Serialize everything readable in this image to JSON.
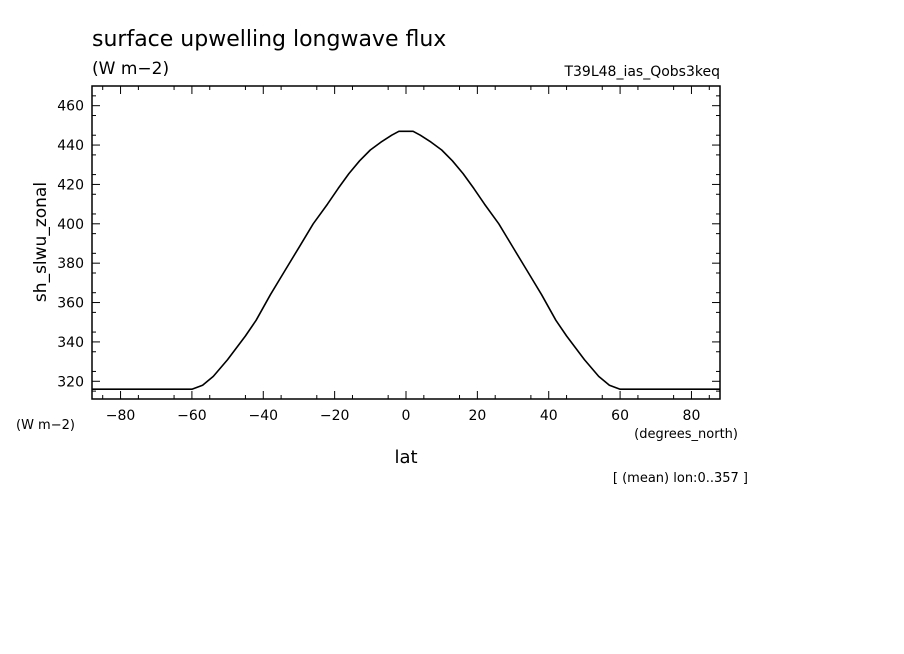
{
  "header": {
    "title": "surface upwelling longwave flux",
    "units": "(W m−2)",
    "run_id": "T39L48_ias_Qobs3keq"
  },
  "footer": {
    "y_units": "(W m−2)",
    "x_units": "(degrees_north)",
    "note": "[ (mean) lon:0..357 ]"
  },
  "chart_data": {
    "type": "line",
    "xlabel": "lat",
    "ylabel": "sh_slwu_zonal",
    "xlim": [
      -88,
      88
    ],
    "ylim": [
      311,
      470
    ],
    "xticks": [
      -80,
      -60,
      -40,
      -20,
      0,
      20,
      40,
      60,
      80
    ],
    "xtick_labels": [
      "−80",
      "−60",
      "−40",
      "−20",
      "0",
      "20",
      "40",
      "60",
      "80"
    ],
    "yticks": [
      320,
      340,
      360,
      380,
      400,
      420,
      440,
      460
    ],
    "ytick_labels": [
      "320",
      "340",
      "360",
      "380",
      "400",
      "420",
      "440",
      "460"
    ],
    "series": [
      {
        "color": "#000000",
        "x": [
          -88,
          -80,
          -70,
          -60,
          -57,
          -54,
          -50,
          -45,
          -42,
          -38,
          -34,
          -30,
          -26,
          -22,
          -19,
          -16,
          -13,
          -10,
          -7,
          -4,
          -2,
          0,
          2,
          4,
          7,
          10,
          13,
          16,
          19,
          22,
          26,
          30,
          34,
          38,
          42,
          45,
          50,
          54,
          57,
          60,
          70,
          80,
          88
        ],
        "y": [
          316,
          316,
          316,
          316,
          318,
          322.5,
          331,
          343,
          351,
          364,
          376,
          388,
          400,
          410,
          418,
          425.5,
          432,
          437.5,
          441.5,
          445,
          447,
          447,
          447,
          445,
          441.5,
          437.5,
          432,
          425.5,
          418,
          410,
          400,
          388,
          376,
          364,
          351,
          343,
          331,
          322.5,
          318,
          316,
          316,
          316,
          316
        ]
      }
    ]
  }
}
